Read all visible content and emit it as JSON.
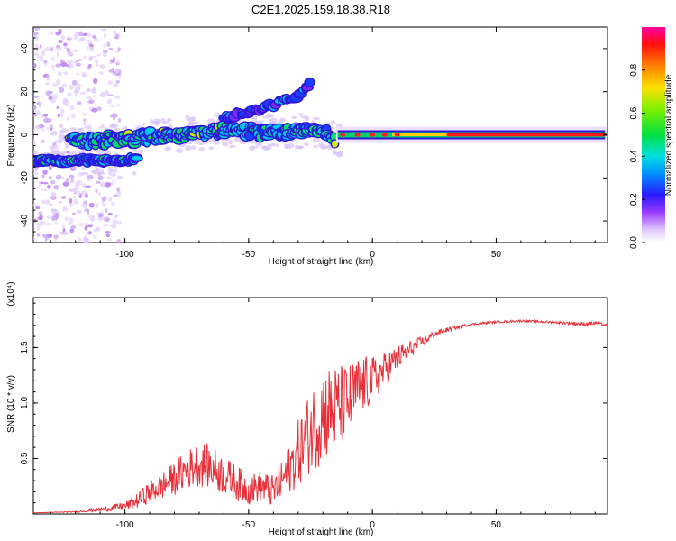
{
  "title": "C2E1.2025.159.18.38.R18",
  "colors": {
    "snr_line": "#e8303a",
    "spectral_core": "#ff1a1a",
    "spectral_outline": "#3a1acc"
  },
  "chart_data": [
    {
      "type": "heatmap",
      "xlabel": "Height of straight line (km)",
      "ylabel": "Frequency (Hz)",
      "xlim": [
        -137,
        95
      ],
      "ylim": [
        -50,
        50
      ],
      "x_ticks": [
        "-100",
        "-50",
        "0",
        "50"
      ],
      "x_tick_values": [
        -100,
        -50,
        0,
        50
      ],
      "y_ticks": [
        "-40",
        "-20",
        "0",
        "20",
        "40"
      ],
      "y_tick_values": [
        -40,
        -20,
        0,
        20,
        40
      ],
      "colorbar": {
        "label": "Normalized spectral amplitude",
        "ticks": [
          "0.0",
          "0.2",
          "0.4",
          "0.6",
          "0.8"
        ],
        "tick_values": [
          0.0,
          0.2,
          0.4,
          0.6,
          0.8
        ],
        "range": [
          0,
          1
        ],
        "colormap": "rainbow (white-violet-blue-cyan-green-yellow-orange-red-magenta)"
      },
      "features": [
        {
          "name": "lower branch",
          "x": [
            -137,
            -120,
            -100,
            -95
          ],
          "freq_hz": [
            -12,
            -12,
            -12,
            -11
          ],
          "amplitude": 0.35
        },
        {
          "name": "main trace",
          "x": [
            -122,
            -100,
            -80,
            -60,
            -40,
            -20,
            -15
          ],
          "freq_hz": [
            -3,
            -2,
            0,
            2,
            1,
            2,
            -3
          ],
          "amplitude": 0.45
        },
        {
          "name": "chirp branch",
          "x": [
            -60,
            -45,
            -30,
            -25
          ],
          "freq_hz": [
            8,
            12,
            18,
            24
          ],
          "amplitude": 0.2
        },
        {
          "name": "direct signal",
          "x": [
            -14,
            0,
            20,
            40,
            60,
            80,
            94
          ],
          "freq_hz": [
            0,
            0,
            0,
            0,
            0,
            0,
            0
          ],
          "amplitude": 0.95
        }
      ]
    },
    {
      "type": "line",
      "xlabel": "Height of straight line (km)",
      "ylabel": "SNR (10 * v/v)",
      "y_multiplier": "(x10⁴)",
      "xlim": [
        -137,
        95
      ],
      "ylim": [
        0,
        1.95
      ],
      "x_ticks": [
        "-100",
        "-50",
        "0",
        "50"
      ],
      "x_tick_values": [
        -100,
        -50,
        0,
        50
      ],
      "y_ticks": [
        "0.5",
        "1.0",
        "1.5"
      ],
      "y_tick_values": [
        0.5,
        1.0,
        1.5
      ],
      "series": [
        {
          "x": [
            -137,
            -120,
            -110,
            -100,
            -95,
            -90,
            -85,
            -80,
            -75,
            -70,
            -65,
            -60,
            -55,
            -50,
            -45,
            -40,
            -35,
            -30,
            -25,
            -20,
            -15,
            -10,
            -5,
            0,
            5,
            10,
            15,
            20,
            25,
            30,
            40,
            50,
            60,
            70,
            80,
            85,
            90,
            95
          ],
          "y": [
            0.01,
            0.02,
            0.04,
            0.07,
            0.12,
            0.2,
            0.25,
            0.32,
            0.4,
            0.45,
            0.42,
            0.35,
            0.28,
            0.22,
            0.25,
            0.2,
            0.35,
            0.55,
            0.75,
            0.9,
            0.95,
            1.0,
            1.15,
            1.2,
            1.3,
            1.4,
            1.48,
            1.55,
            1.62,
            1.66,
            1.71,
            1.73,
            1.74,
            1.73,
            1.72,
            1.71,
            1.72,
            1.7
          ],
          "noise": [
            0.0,
            0.005,
            0.02,
            0.04,
            0.07,
            0.1,
            0.12,
            0.15,
            0.18,
            0.2,
            0.2,
            0.18,
            0.16,
            0.14,
            0.14,
            0.15,
            0.2,
            0.3,
            0.38,
            0.45,
            0.4,
            0.35,
            0.28,
            0.22,
            0.16,
            0.12,
            0.08,
            0.05,
            0.03,
            0.02,
            0.01,
            0.01,
            0.01,
            0.01,
            0.015,
            0.02,
            0.015,
            0.01
          ]
        }
      ]
    }
  ]
}
